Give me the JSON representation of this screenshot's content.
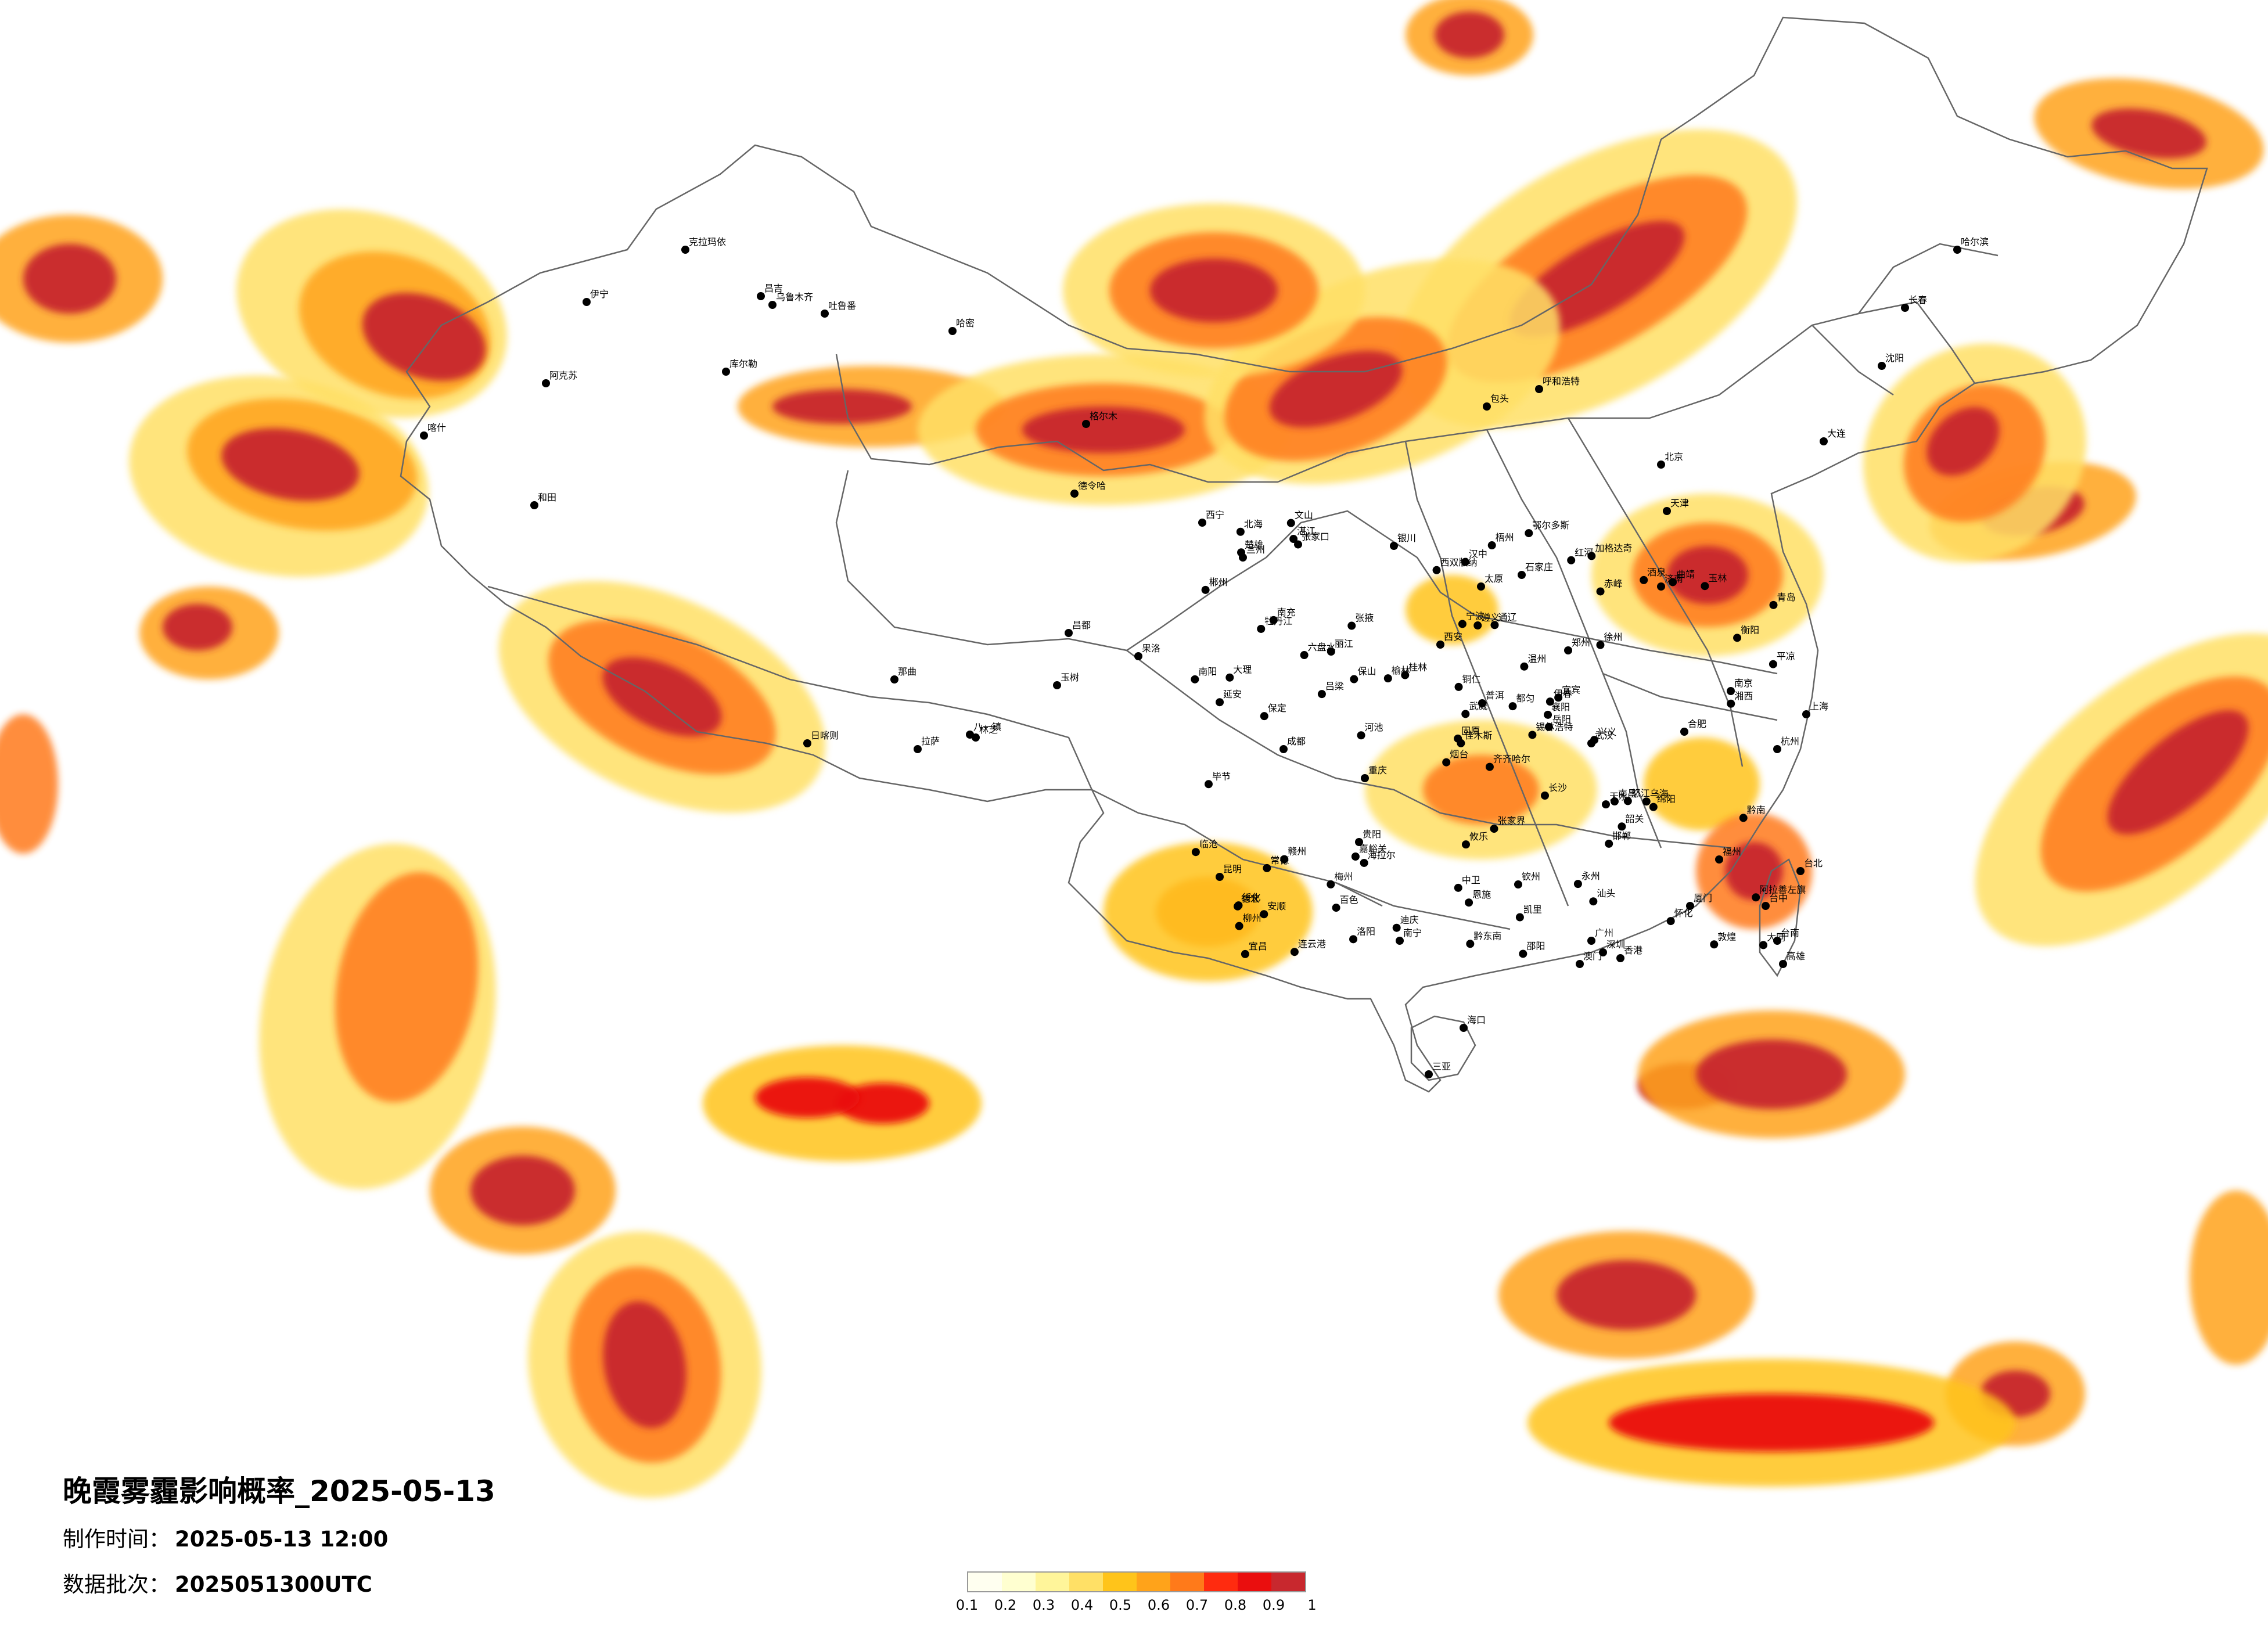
{
  "title": "晚霞雾霾影响概率_2025-05-13",
  "made_time_label": "制作时间：",
  "made_time_value": "2025-05-13 12:00",
  "batch_label": "数据批次：",
  "batch_value": "2025051300UTC",
  "legend": {
    "ticks": [
      "0.1",
      "0.2",
      "0.3",
      "0.4",
      "0.5",
      "0.6",
      "0.7",
      "0.8",
      "0.9",
      "1"
    ],
    "colors": [
      "#FFFFF0",
      "#FFFFD0",
      "#FFF59A",
      "#FFE066",
      "#FFC41A",
      "#FFA31A",
      "#FF7A1A",
      "#FF2B0F",
      "#EA0E0E",
      "#C8282E"
    ]
  },
  "cities": [
    "克拉玛依",
    "昌吉",
    "乌鲁木齐",
    "吐鲁番",
    "哈密",
    "伊宁",
    "阿克苏",
    "喀什",
    "和田",
    "库尔勒",
    "格尔木",
    "德令哈",
    "西宁",
    "兰州",
    "拉萨",
    "日喀则",
    "林芝",
    "那曲",
    "昌都",
    "八一镇",
    "玉树",
    "果洛",
    "成都",
    "重庆",
    "昆明",
    "贵阳",
    "南宁",
    "海口",
    "三亚",
    "广州",
    "深圳",
    "香港",
    "澳门",
    "福州",
    "厦门",
    "台北",
    "台中",
    "台南",
    "高雄",
    "杭州",
    "上海",
    "南京",
    "合肥",
    "武汉",
    "长沙",
    "南昌",
    "郑州",
    "济南",
    "石家庄",
    "太原",
    "北京",
    "天津",
    "呼和浩特",
    "包头",
    "银川",
    "西安",
    "沈阳",
    "长春",
    "哈尔滨",
    "大连",
    "齐齐哈尔",
    "牡丹江",
    "佳木斯",
    "绥化",
    "伊春",
    "海拉尔",
    "加格达奇",
    "通辽",
    "赤峰",
    "锡林浩特",
    "张家口",
    "大同",
    "保定",
    "青岛",
    "烟台",
    "徐州",
    "连云港",
    "宁波",
    "温州",
    "赣州",
    "桂林",
    "柳州",
    "百色",
    "遵义",
    "宜宾",
    "绵阳",
    "南充",
    "汉中",
    "延安",
    "天水",
    "平凉",
    "固原",
    "中卫",
    "武威",
    "张掖",
    "酒泉",
    "嘉峪关",
    "敦煌",
    "阿拉善左旗",
    "乌海",
    "鄂尔多斯",
    "榆林",
    "吕梁",
    "邯郸",
    "洛阳",
    "南阳",
    "襄阳",
    "宜昌",
    "恩施",
    "岳阳",
    "常德",
    "衡阳",
    "郴州",
    "韶关",
    "汕头",
    "梅州",
    "湛江",
    "北海",
    "钦州",
    "玉林",
    "梧州",
    "河池",
    "大理",
    "丽江",
    "曲靖",
    "文山",
    "红河",
    "西双版纳",
    "普洱",
    "临沧",
    "攸乐",
    "迪庆",
    "怒江",
    "保山",
    "德宏",
    "楚雄",
    "六盘水",
    "毕节",
    "铜仁",
    "凯里",
    "都匀",
    "安顺",
    "兴义",
    "黔南",
    "黔东南",
    "湘西",
    "张家界",
    "怀化",
    "邵阳",
    "永州"
  ]
}
